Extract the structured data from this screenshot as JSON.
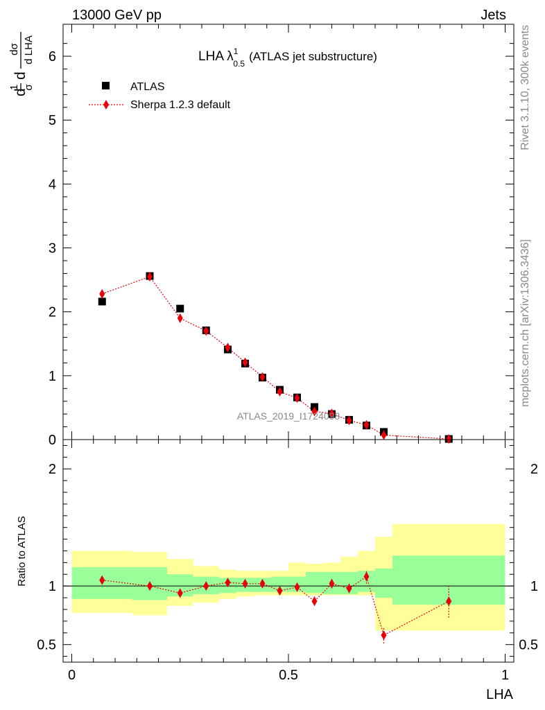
{
  "header": {
    "left": "13000 GeV pp",
    "right": "Jets"
  },
  "side": {
    "top": "Rivet 3.1.10,  300k events",
    "bottom": "mcplots.cern.ch [arXiv:1306.3436]"
  },
  "chart_data": [
    {
      "type": "scatter",
      "title_main": "LHA λ",
      "title_sup": "1",
      "title_sub": "0.5",
      "title_rest": "(ATLAS jet substructure)",
      "ylabel": "1/σ dσ/d LHA",
      "watermark": "ATLAS_2019_I1724098",
      "xlim": [
        -0.02,
        1.02
      ],
      "ylim": [
        0,
        6.5
      ],
      "yticks": [
        "0",
        "1",
        "2",
        "3",
        "4",
        "5",
        "6"
      ],
      "legend_position": "top-left",
      "series": [
        {
          "name": "ATLAS",
          "color": "#000000",
          "marker": "square",
          "x": [
            0.07,
            0.18,
            0.25,
            0.31,
            0.36,
            0.4,
            0.44,
            0.48,
            0.52,
            0.56,
            0.6,
            0.64,
            0.68,
            0.72,
            0.87
          ],
          "y": [
            2.16,
            2.56,
            2.05,
            1.71,
            1.41,
            1.19,
            0.97,
            0.78,
            0.66,
            0.51,
            0.4,
            0.31,
            0.22,
            0.12,
            0.01
          ]
        },
        {
          "name": "Sherpa 1.2.3 default",
          "color": "#e8000b",
          "marker": "diamond",
          "x": [
            0.07,
            0.18,
            0.25,
            0.31,
            0.36,
            0.4,
            0.44,
            0.48,
            0.52,
            0.56,
            0.6,
            0.64,
            0.68,
            0.72,
            0.87
          ],
          "y": [
            2.28,
            2.55,
            1.9,
            1.7,
            1.44,
            1.21,
            0.98,
            0.75,
            0.65,
            0.44,
            0.41,
            0.3,
            0.23,
            0.07,
            0.01
          ]
        }
      ]
    },
    {
      "type": "scatter",
      "xlabel": "LHA",
      "ylabel": "Ratio to ATLAS",
      "xlim": [
        -0.02,
        1.02
      ],
      "ylim": [
        0.35,
        2.25
      ],
      "xticks": [
        "0",
        "0.5",
        "1"
      ],
      "yticks": [
        "0.5",
        "1",
        "2"
      ],
      "bins": [
        0,
        0.14,
        0.22,
        0.28,
        0.34,
        0.38,
        0.42,
        0.46,
        0.5,
        0.54,
        0.58,
        0.62,
        0.66,
        0.7,
        0.74,
        1.0
      ],
      "band_inner": [
        [
          0.89,
          1.16
        ],
        [
          0.88,
          1.16
        ],
        [
          0.91,
          1.1
        ],
        [
          0.93,
          1.08
        ],
        [
          0.94,
          1.07
        ],
        [
          0.95,
          1.07
        ],
        [
          0.95,
          1.07
        ],
        [
          0.95,
          1.08
        ],
        [
          0.95,
          1.08
        ],
        [
          0.94,
          1.12
        ],
        [
          0.93,
          1.12
        ],
        [
          0.93,
          1.12
        ],
        [
          0.95,
          1.13
        ],
        [
          0.9,
          1.15
        ],
        [
          0.84,
          1.26
        ]
      ],
      "band_outer": [
        [
          0.77,
          1.3
        ],
        [
          0.75,
          1.29
        ],
        [
          0.83,
          1.23
        ],
        [
          0.86,
          1.17
        ],
        [
          0.89,
          1.14
        ],
        [
          0.91,
          1.13
        ],
        [
          0.92,
          1.13
        ],
        [
          0.92,
          1.13
        ],
        [
          0.92,
          1.2
        ],
        [
          0.92,
          1.19
        ],
        [
          0.92,
          1.2
        ],
        [
          0.92,
          1.25
        ],
        [
          0.92,
          1.3
        ],
        [
          0.62,
          1.42
        ],
        [
          0.62,
          1.53
        ]
      ],
      "band_colors": {
        "inner": "#99ff99",
        "outer": "#ffff99"
      },
      "series": [
        {
          "name": "Sherpa 1.2.3 default",
          "color": "#e8000b",
          "x": [
            0.07,
            0.18,
            0.25,
            0.31,
            0.36,
            0.4,
            0.44,
            0.48,
            0.52,
            0.56,
            0.6,
            0.64,
            0.68,
            0.72,
            0.87
          ],
          "y": [
            1.05,
            1.0,
            0.94,
            1.0,
            1.03,
            1.02,
            1.02,
            0.96,
            0.99,
            0.87,
            1.02,
            0.98,
            1.08,
            0.58,
            0.87
          ],
          "err_lo": [
            0.01,
            0.01,
            0.01,
            0.01,
            0.02,
            0.02,
            0.02,
            0.02,
            0.03,
            0.04,
            0.04,
            0.04,
            0.06,
            0.07,
            0.14
          ],
          "err_hi": [
            0.01,
            0.01,
            0.01,
            0.01,
            0.02,
            0.02,
            0.02,
            0.02,
            0.03,
            0.04,
            0.04,
            0.04,
            0.06,
            0.07,
            0.14
          ]
        }
      ]
    }
  ]
}
